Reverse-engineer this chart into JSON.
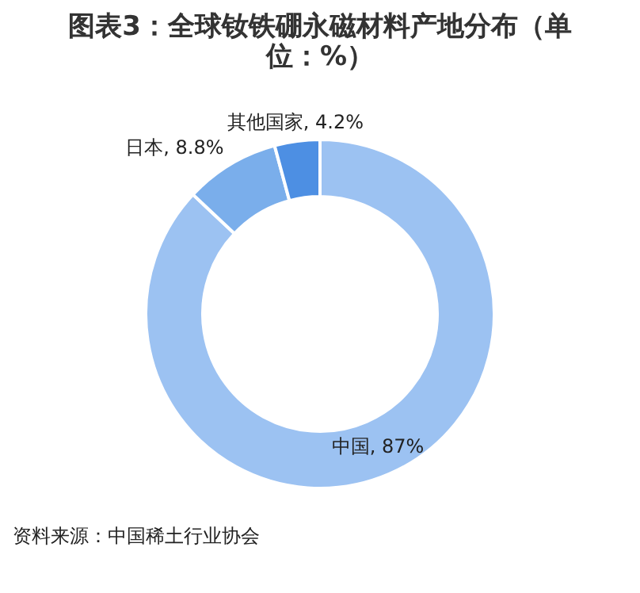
{
  "chart_data": {
    "type": "donut",
    "title": "图表3：全球钕铁硼永磁材料产地分布（单位：%）",
    "categories": [
      "中国",
      "日本",
      "其他国家"
    ],
    "values": [
      87,
      8.8,
      4.2
    ],
    "colors": [
      "#9cc2f2",
      "#7aaeeb",
      "#4d8fe3"
    ],
    "value_labels": [
      "87%",
      "8.8%",
      "4.2%"
    ],
    "annotations": [
      "资料来源：中国稀土行业协会"
    ]
  }
}
